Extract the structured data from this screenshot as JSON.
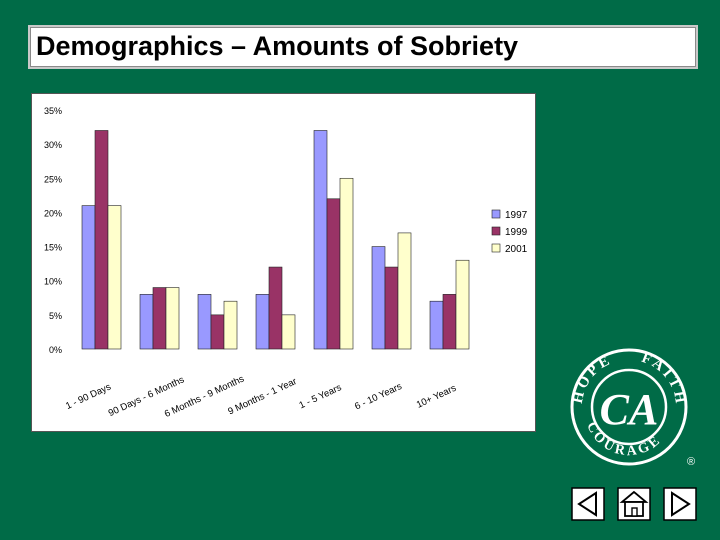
{
  "slide": {
    "title": "Demographics – Amounts of Sobriety"
  },
  "chart_data": {
    "type": "bar",
    "categories": [
      "1 - 90 Days",
      "90 Days - 6 Months",
      "6 Months - 9 Months",
      "9 Months - 1 Year",
      "1 - 5 Years",
      "6 - 10 Years",
      "10+ Years"
    ],
    "series": [
      {
        "name": "1997",
        "values": [
          21,
          8,
          8,
          8,
          32,
          15,
          7
        ],
        "color": "#9999ff"
      },
      {
        "name": "1999",
        "values": [
          32,
          9,
          5,
          12,
          22,
          12,
          8
        ],
        "color": "#993366"
      },
      {
        "name": "2001",
        "values": [
          21,
          9,
          7,
          5,
          25,
          17,
          13
        ],
        "color": "#ffffcc"
      }
    ],
    "yticks": [
      "0%",
      "5%",
      "10%",
      "15%",
      "20%",
      "25%",
      "30%",
      "35%"
    ],
    "ylim": [
      0,
      35
    ],
    "legend_position": "right",
    "plot_background": "#ffffff",
    "grid": false
  },
  "logo": {
    "top_left": "HOPE",
    "top_right": "FAITH",
    "bottom": "COURAGE",
    "monogram": "CA",
    "registered": "®"
  },
  "nav": {
    "prev_icon": "triangle-left-icon",
    "home_icon": "home-icon",
    "next_icon": "triangle-right-icon"
  }
}
